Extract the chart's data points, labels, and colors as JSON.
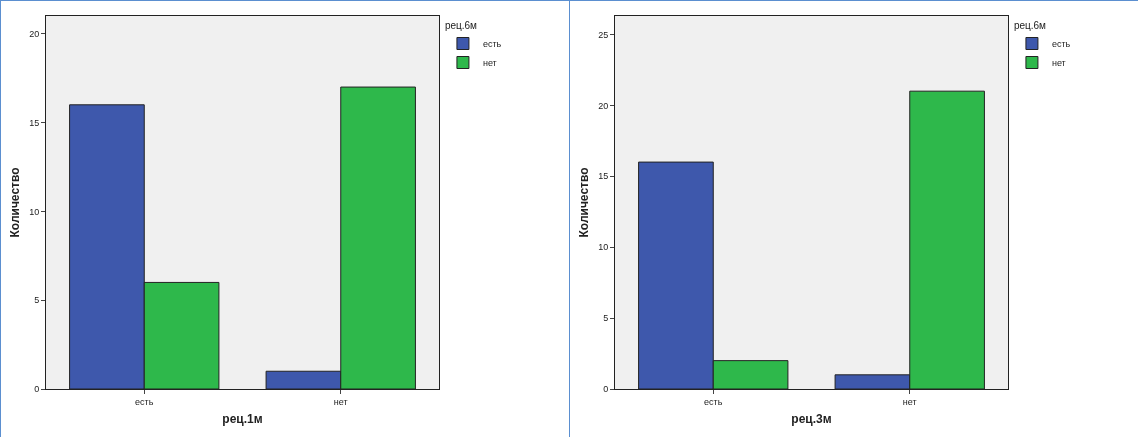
{
  "chart_data": [
    {
      "type": "bar",
      "categories": [
        "есть",
        "нет"
      ],
      "xlabel": "рец.1м",
      "ylabel": "Количество",
      "legend_title": "рец.6м",
      "legend": "top right",
      "grid": false,
      "ylim": [
        0,
        21
      ],
      "yticks": [
        0,
        5,
        10,
        15,
        20
      ],
      "series": [
        {
          "name": "есть",
          "color": "#3e58ac",
          "values": [
            16,
            1
          ]
        },
        {
          "name": "нет",
          "color": "#2eb84b",
          "values": [
            6,
            17
          ]
        }
      ]
    },
    {
      "type": "bar",
      "categories": [
        "есть",
        "нет"
      ],
      "xlabel": "рец.3м",
      "ylabel": "Количество",
      "legend_title": "рец.6м",
      "legend": "top right",
      "grid": false,
      "ylim": [
        0,
        26.3
      ],
      "yticks": [
        0,
        5,
        10,
        15,
        20,
        25
      ],
      "series": [
        {
          "name": "есть",
          "color": "#3e58ac",
          "values": [
            16,
            1
          ]
        },
        {
          "name": "нет",
          "color": "#2eb84b",
          "values": [
            2,
            21
          ]
        }
      ]
    }
  ]
}
